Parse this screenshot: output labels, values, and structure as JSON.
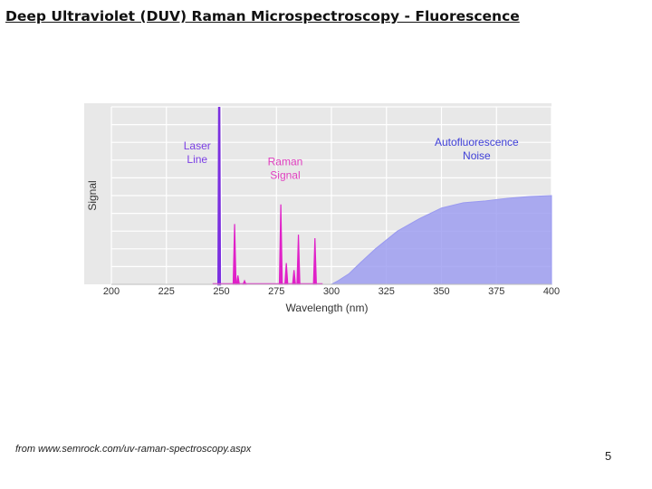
{
  "slide": {
    "title": "Deep Ultraviolet (DUV) Raman Microspectroscopy - Fluorescence",
    "source": "from www.semrock.com/uv-raman-spectroscopy.aspx",
    "page_number": "5"
  },
  "chart_data": {
    "type": "line",
    "title": "",
    "xlabel": "Wavelength (nm)",
    "ylabel": "Signal",
    "xlim": [
      200,
      400
    ],
    "ylim": [
      0,
      1
    ],
    "grid": true,
    "x_ticks": [
      "200",
      "225",
      "250",
      "275",
      "300",
      "325",
      "350",
      "375",
      "400"
    ],
    "annotations": [
      {
        "lines": [
          "Laser",
          "Line"
        ],
        "x": 239,
        "y": 0.76,
        "color": "#7b3fe4"
      },
      {
        "lines": [
          "Raman",
          "Signal"
        ],
        "x": 279,
        "y": 0.67,
        "color": "#e040c0"
      },
      {
        "lines": [
          "Autofluorescence",
          "Noise"
        ],
        "x": 366,
        "y": 0.78,
        "color": "#4040d8"
      }
    ],
    "series": [
      {
        "kind": "spike",
        "color": "#7b2fe0",
        "points": [
          [
            249,
            1.0
          ]
        ]
      },
      {
        "kind": "spikes",
        "color": "#e020c8",
        "points": [
          [
            256,
            0.34
          ],
          [
            257.5,
            0.05
          ],
          [
            260.5,
            0.02
          ],
          [
            277,
            0.45
          ],
          [
            279.5,
            0.12
          ],
          [
            283,
            0.08
          ],
          [
            285,
            0.28
          ],
          [
            292.5,
            0.26
          ]
        ]
      },
      {
        "kind": "area",
        "color": "#9999f0",
        "points": [
          [
            200,
            0
          ],
          [
            300,
            0
          ],
          [
            303,
            0.02
          ],
          [
            308,
            0.06
          ],
          [
            313,
            0.12
          ],
          [
            320,
            0.2
          ],
          [
            330,
            0.3
          ],
          [
            340,
            0.37
          ],
          [
            350,
            0.43
          ],
          [
            360,
            0.46
          ],
          [
            370,
            0.47
          ],
          [
            380,
            0.485
          ],
          [
            390,
            0.495
          ],
          [
            400,
            0.5
          ]
        ]
      }
    ],
    "colors": {
      "plot_bg": "#e8e8e8",
      "grid": "#ffffff",
      "axis_text": "#333333"
    }
  }
}
